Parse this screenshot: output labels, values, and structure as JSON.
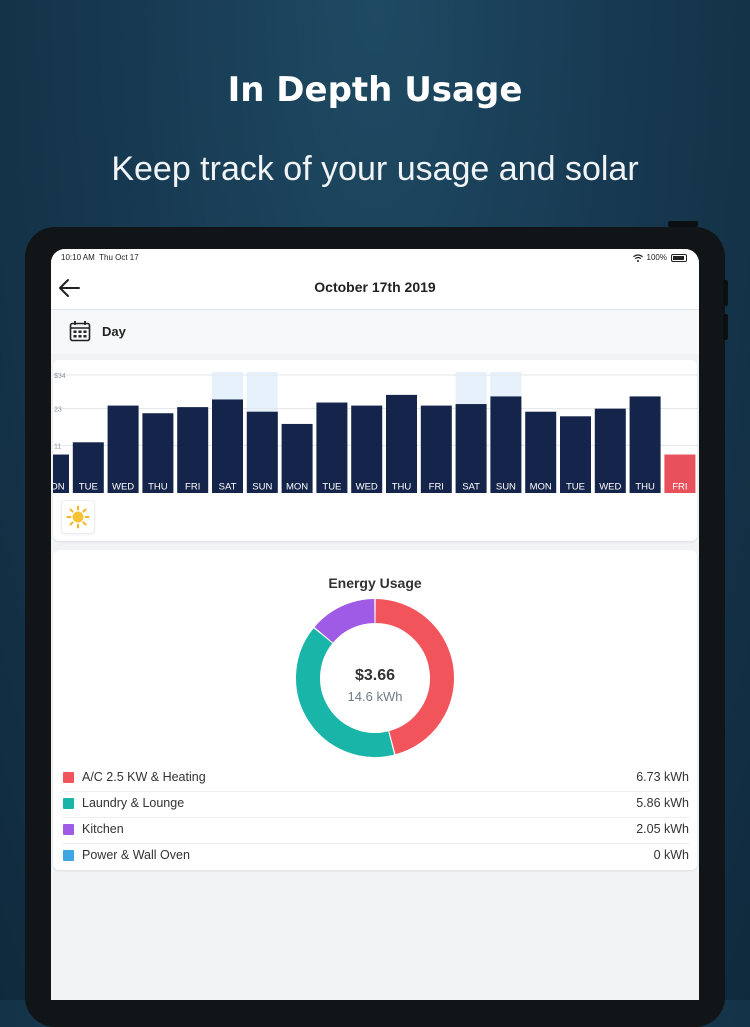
{
  "promo": {
    "title": "In Depth Usage",
    "subtitle": "Keep track of your usage and solar"
  },
  "status_bar": {
    "time": "10:10 AM",
    "date": "Thu Oct 17",
    "battery": "100%"
  },
  "header": {
    "title": "October 17th 2019",
    "back_icon": "back-arrow-icon"
  },
  "period": {
    "label": "Day",
    "icon": "calendar-icon"
  },
  "colors": {
    "bar": "#14244a",
    "bar_selected": "#e8505b",
    "highlight": "#e7f1fb",
    "ac": "#f2545b",
    "laundry": "#19b5a8",
    "kitchen": "#9f5be6",
    "power": "#3ea6e3"
  },
  "chart_data": {
    "type": "bar",
    "ylabels": [
      "$34",
      "23",
      "11"
    ],
    "categories": [
      "MON",
      "TUE",
      "WED",
      "THU",
      "FRI",
      "SAT",
      "SUN",
      "MON",
      "TUE",
      "WED",
      "THU",
      "FRI",
      "SAT",
      "SUN",
      "MON",
      "TUE",
      "WED",
      "THU",
      "FRI"
    ],
    "values": [
      8,
      12,
      24,
      21.5,
      23.5,
      26,
      22,
      18,
      25,
      24,
      27.5,
      24,
      24.5,
      27,
      22,
      20.5,
      23,
      27,
      8
    ],
    "highlighted": [
      5,
      6,
      12,
      13
    ],
    "selected_index": 18,
    "ylim": [
      0,
      34
    ]
  },
  "solar_toggle_icon": "sun-icon",
  "usage": {
    "title": "Energy Usage",
    "cost": "$3.66",
    "kwh": "14.6 kWh",
    "items": [
      {
        "name": "A/C 2.5 KW & Heating",
        "value": "6.73 kWh",
        "kwh": 6.73,
        "color": "#f2545b"
      },
      {
        "name": "Laundry & Lounge",
        "value": "5.86 kWh",
        "kwh": 5.86,
        "color": "#19b5a8"
      },
      {
        "name": "Kitchen",
        "value": "2.05 kWh",
        "kwh": 2.05,
        "color": "#9f5be6"
      },
      {
        "name": "Power & Wall Oven",
        "value": "0 kWh",
        "kwh": 0,
        "color": "#3ea6e3"
      }
    ]
  }
}
